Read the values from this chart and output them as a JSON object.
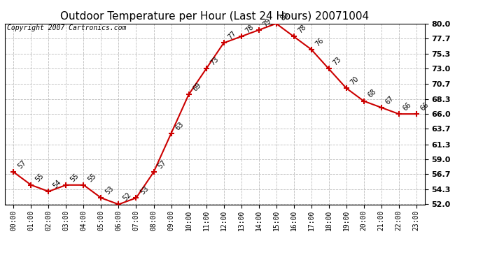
{
  "title": "Outdoor Temperature per Hour (Last 24 Hours) 20071004",
  "copyright": "Copyright 2007 Cartronics.com",
  "hours": [
    "00:00",
    "01:00",
    "02:00",
    "03:00",
    "04:00",
    "05:00",
    "06:00",
    "07:00",
    "08:00",
    "09:00",
    "10:00",
    "11:00",
    "12:00",
    "13:00",
    "14:00",
    "15:00",
    "16:00",
    "17:00",
    "18:00",
    "19:00",
    "20:00",
    "21:00",
    "22:00",
    "23:00"
  ],
  "temps": [
    57,
    55,
    54,
    55,
    55,
    53,
    52,
    53,
    57,
    63,
    69,
    73,
    77,
    78,
    79,
    80,
    78,
    76,
    73,
    70,
    68,
    67,
    66,
    66
  ],
  "ylim_min": 52.0,
  "ylim_max": 80.0,
  "yticks": [
    52.0,
    54.3,
    56.7,
    59.0,
    61.3,
    63.7,
    66.0,
    68.3,
    70.7,
    73.0,
    75.3,
    77.7,
    80.0
  ],
  "ytick_labels": [
    "52.0",
    "54.3",
    "56.7",
    "59.0",
    "61.3",
    "63.7",
    "66.0",
    "68.3",
    "70.7",
    "73.0",
    "75.3",
    "77.7",
    "80.0"
  ],
  "line_color": "#cc0000",
  "marker_color": "#cc0000",
  "bg_color": "#ffffff",
  "grid_color": "#bbbbbb",
  "title_fontsize": 11,
  "copyright_fontsize": 7,
  "annot_fontsize": 7,
  "tick_fontsize": 7,
  "ytick_fontsize": 8
}
